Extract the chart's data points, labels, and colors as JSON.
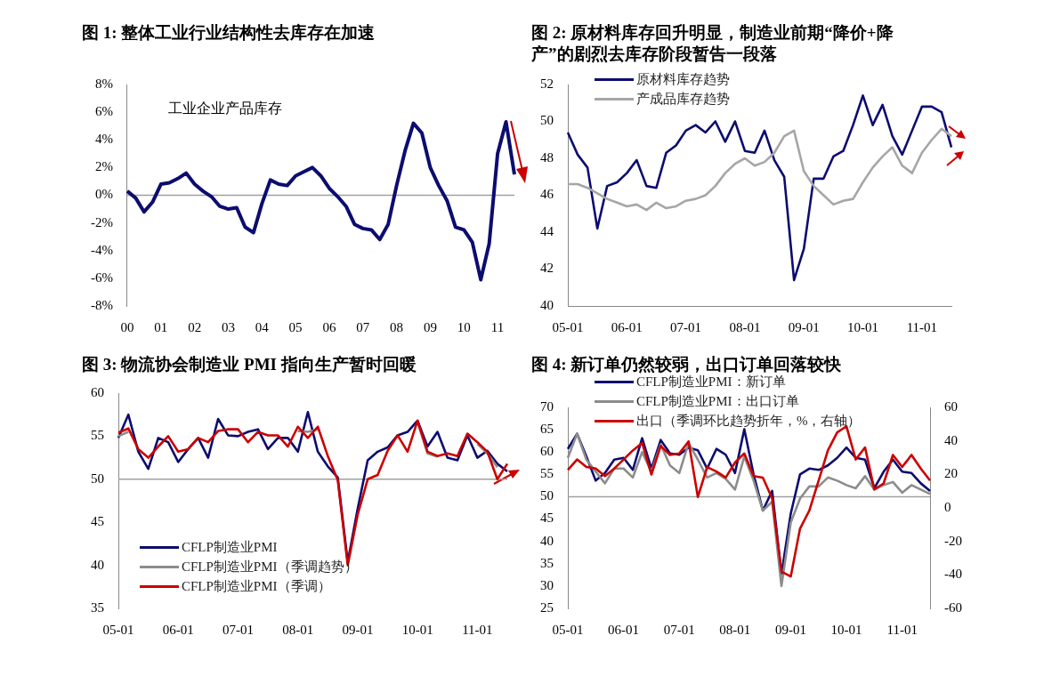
{
  "chart_data": [
    {
      "type": "line",
      "title": "图 1: 整体工业行业结构性去库存在加速",
      "categories": [
        "00",
        null,
        null,
        null,
        "01",
        null,
        null,
        null,
        "02",
        null,
        null,
        null,
        "03",
        null,
        null,
        null,
        "04",
        null,
        null,
        null,
        "05",
        null,
        null,
        null,
        "06",
        null,
        null,
        null,
        "07",
        null,
        null,
        null,
        "08",
        null,
        null,
        null,
        "09",
        null,
        null,
        null,
        "10",
        null,
        null,
        null,
        "11",
        null,
        null
      ],
      "series": [
        {
          "color": "#0c0c70",
          "values": [
            0.3,
            -0.2,
            -1.2,
            -0.5,
            0.8,
            0.9,
            1.2,
            1.6,
            0.8,
            0.3,
            -0.1,
            -0.8,
            -1.0,
            -0.9,
            -2.3,
            -2.7,
            -0.6,
            1.1,
            0.8,
            0.7,
            1.4,
            1.7,
            2.0,
            1.4,
            0.5,
            -0.1,
            -0.8,
            -2.1,
            -2.4,
            -2.5,
            -3.2,
            -2.1,
            0.7,
            3.2,
            5.2,
            4.5,
            2.0,
            0.7,
            -0.4,
            -2.3,
            -2.5,
            -3.4,
            -6.1,
            -3.5,
            3.0,
            5.3,
            1.5
          ]
        }
      ],
      "ylim": [
        -8,
        8
      ],
      "yticks": [
        {
          "value": -8,
          "label": "-8%"
        },
        {
          "value": -6,
          "label": "-6%"
        },
        {
          "value": -4,
          "label": "-4%"
        },
        {
          "value": -2,
          "label": "-2%"
        },
        {
          "value": 0,
          "label": "0%"
        },
        {
          "value": 2,
          "label": "2%"
        },
        {
          "value": 4,
          "label": "4%"
        },
        {
          "value": 6,
          "label": "6%"
        },
        {
          "value": 8,
          "label": "8%"
        }
      ],
      "ref_lines": [
        {
          "axis": "y",
          "value": 0,
          "color": "#a0a0a0"
        }
      ],
      "annotations": [
        "工业企业产品库存"
      ]
    },
    {
      "type": "line",
      "title": "图 2: 原材料库存回升明显，制造业前期“降价+降产”的剧烈去库存阶段暂告一段落",
      "categories": [
        "05-01",
        null,
        null,
        null,
        null,
        null,
        "06-01",
        null,
        null,
        null,
        null,
        null,
        "07-01",
        null,
        null,
        null,
        null,
        null,
        "08-01",
        null,
        null,
        null,
        null,
        null,
        "09-01",
        null,
        null,
        null,
        null,
        null,
        "10-01",
        null,
        null,
        null,
        null,
        null,
        "11-01",
        null,
        null,
        null
      ],
      "series": [
        {
          "name": "原材料库存趋势",
          "color": "#0c0c70",
          "values": [
            49.4,
            48.2,
            47.5,
            44.2,
            46.5,
            46.7,
            47.2,
            47.9,
            46.5,
            46.4,
            48.3,
            48.7,
            49.5,
            49.8,
            49.4,
            50.0,
            48.9,
            50.0,
            48.4,
            48.3,
            49.5,
            47.9,
            47.0,
            41.4,
            43.1,
            46.9,
            46.9,
            48.1,
            48.4,
            49.8,
            51.4,
            49.8,
            50.9,
            49.2,
            48.2,
            49.5,
            50.8,
            50.8,
            50.5,
            48.6
          ]
        },
        {
          "name": "产成品库存趋势",
          "color": "#a6a6a6",
          "values": [
            46.6,
            46.6,
            46.4,
            46.1,
            45.8,
            45.6,
            45.4,
            45.5,
            45.2,
            45.6,
            45.3,
            45.4,
            45.7,
            45.8,
            46.0,
            46.5,
            47.2,
            47.7,
            48.0,
            47.6,
            47.8,
            48.3,
            49.2,
            49.5,
            47.3,
            46.5,
            46.0,
            45.5,
            45.7,
            45.8,
            46.7,
            47.5,
            48.1,
            48.6,
            47.6,
            47.2,
            48.3,
            49.0,
            49.6,
            49.2
          ]
        }
      ],
      "ylim": [
        40,
        52
      ],
      "yticks": [
        40,
        42,
        44,
        46,
        48,
        50,
        52
      ],
      "legend": "top left"
    },
    {
      "type": "line",
      "title": "图 3: 物流协会制造业 PMI 指向生产暂时回暖",
      "categories": [
        "05-01",
        null,
        null,
        null,
        null,
        null,
        "06-01",
        null,
        null,
        null,
        null,
        null,
        "07-01",
        null,
        null,
        null,
        null,
        null,
        "08-01",
        null,
        null,
        null,
        null,
        null,
        "09-01",
        null,
        null,
        null,
        null,
        null,
        "10-01",
        null,
        null,
        null,
        null,
        null,
        "11-01",
        null,
        null,
        null
      ],
      "series": [
        {
          "name": "CFLP制造业PMI",
          "color": "#0c0c70",
          "values": [
            54.8,
            57.5,
            53.2,
            51.2,
            54.8,
            54.3,
            52.0,
            53.5,
            54.8,
            52.5,
            57.0,
            55.1,
            55.0,
            55.5,
            55.8,
            53.5,
            54.8,
            54.8,
            53.2,
            57.8,
            53.2,
            51.5,
            50.2,
            40.4,
            46.6,
            52.2,
            53.2,
            53.7,
            55.1,
            55.5,
            56.8,
            53.8,
            55.5,
            52.5,
            52.2,
            55.1,
            52.5,
            53.3,
            51.8,
            50.9
          ]
        },
        {
          "name": "CFLP制造业PMI（季调趋势）",
          "color": "#8c8c8c",
          "values": [
            55.0,
            55.5,
            null,
            null,
            null,
            null,
            null,
            null,
            null,
            null,
            null,
            null,
            null,
            null,
            null,
            null,
            null,
            null,
            55.6,
            55.5,
            55.8,
            null,
            null,
            null,
            null,
            null,
            null,
            null,
            null,
            null,
            56.6,
            53.0,
            52.6,
            null,
            null,
            null,
            54.1,
            53.0,
            51.4,
            null
          ]
        },
        {
          "name": "CFLP制造业PMI（季调）",
          "color": "#cc0000",
          "values": [
            55.4,
            55.9,
            53.5,
            52.5,
            53.8,
            55.0,
            53.2,
            53.5,
            54.8,
            54.3,
            55.6,
            55.8,
            55.8,
            54.3,
            55.5,
            55.1,
            55.1,
            53.8,
            56.1,
            54.8,
            56.1,
            52.7,
            49.9,
            40.0,
            45.9,
            50.0,
            50.5,
            53.3,
            55.1,
            53.2,
            56.8,
            53.2,
            52.7,
            53.0,
            52.7,
            55.3,
            54.3,
            53.2,
            50.0,
            51.8
          ]
        }
      ],
      "ylim": [
        35,
        60
      ],
      "yticks": [
        35,
        40,
        45,
        50,
        55,
        60
      ],
      "legend": "bottom left",
      "ref_lines": [
        {
          "axis": "y",
          "value": 50,
          "color": "#a0a0a0"
        }
      ]
    },
    {
      "type": "line",
      "title": "图 4: 新订单仍然较弱，出口订单回落较快",
      "categories": [
        "05-01",
        null,
        null,
        null,
        null,
        null,
        "06-01",
        null,
        null,
        null,
        null,
        null,
        "07-01",
        null,
        null,
        null,
        null,
        null,
        "08-01",
        null,
        null,
        null,
        null,
        null,
        "09-01",
        null,
        null,
        null,
        null,
        null,
        "10-01",
        null,
        null,
        null,
        null,
        null,
        "11-01",
        null,
        null,
        null
      ],
      "series": [
        {
          "name": "CFLP制造业PMI：新订单",
          "color": "#0c0c70",
          "values": [
            60.7,
            64.1,
            59.0,
            53.6,
            55.3,
            58.3,
            58.7,
            56.0,
            63.1,
            56.3,
            62.7,
            59.7,
            59.4,
            61.0,
            60.4,
            56.3,
            60.7,
            59.4,
            55.3,
            65.1,
            55.0,
            46.9,
            51.3,
            32.7,
            46.2,
            55.0,
            56.3,
            56.0,
            57.0,
            58.7,
            61.0,
            58.7,
            58.3,
            51.9,
            55.6,
            58.3,
            55.6,
            55.3,
            53.0,
            51.3
          ]
        },
        {
          "name": "CFLP制造业PMI：出口订单",
          "color": "#8c8c8c",
          "values": [
            58.7,
            64.1,
            58.3,
            55.6,
            53.0,
            56.3,
            56.3,
            54.3,
            60.0,
            55.6,
            61.7,
            57.0,
            55.3,
            62.0,
            58.3,
            54.3,
            55.3,
            54.0,
            51.6,
            59.0,
            53.6,
            46.9,
            48.9,
            30.0,
            44.2,
            49.6,
            52.3,
            52.3,
            54.3,
            53.6,
            52.6,
            51.9,
            54.6,
            51.6,
            52.6,
            53.3,
            50.9,
            52.6,
            51.6,
            50.6
          ]
        },
        {
          "name": "出口（季调环比趋势折年，%，右轴）",
          "color": "#cc0000",
          "axis": "y2",
          "values": [
            22.6,
            28.9,
            24.4,
            23.5,
            19.0,
            23.5,
            28.9,
            34.3,
            38.8,
            19.9,
            37.0,
            31.6,
            32.5,
            39.7,
            6.5,
            24.4,
            21.7,
            18.1,
            27.1,
            32.5,
            19.0,
            18.1,
            5.6,
            -38,
            -41,
            -12.4,
            -1.6,
            16.3,
            34.3,
            45.1,
            48.7,
            28.9,
            36.1,
            11.0,
            14.6,
            31.6,
            24.4,
            31.6,
            23.5,
            16.3
          ]
        }
      ],
      "ylim": [
        25,
        70
      ],
      "yticks": [
        25,
        30,
        35,
        40,
        45,
        50,
        55,
        60,
        65,
        70
      ],
      "y2lim": [
        -60,
        60
      ],
      "y2ticks": [
        -60,
        -40,
        -20,
        0,
        20,
        40,
        60
      ],
      "legend": "top left",
      "ref_lines": [
        {
          "axis": "y",
          "value": 50,
          "color": "#a0a0a0"
        }
      ]
    }
  ]
}
